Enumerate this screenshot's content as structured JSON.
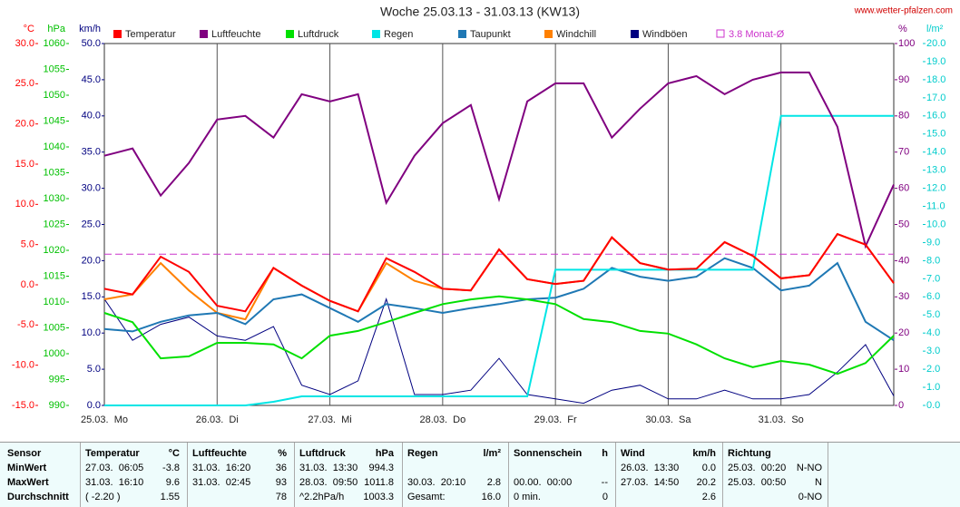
{
  "chart_data": {
    "type": "line",
    "title": "Woche 25.03.13 - 31.03.13 (KW13)",
    "source": "www.wetter-pfalzen.com",
    "categories": [
      "25.03.  Mo",
      null,
      null,
      null,
      "26.03.  Di",
      null,
      null,
      null,
      "27.03.  Mi",
      null,
      null,
      null,
      "28.03.  Do",
      null,
      null,
      null,
      "29.03.  Fr",
      null,
      null,
      null,
      "30.03.  Sa",
      null,
      null,
      null,
      "31.03.  So",
      null,
      null,
      null,
      null
    ],
    "grid": true,
    "axes": {
      "temp": {
        "label": "°C",
        "color": "#ff0000",
        "side": "left",
        "lim": [
          -15,
          30
        ],
        "ticks": [
          {
            "value": -15,
            "label": "-15.0"
          },
          {
            "value": -10,
            "label": "-10.0"
          },
          {
            "value": -5,
            "label": "-5.0"
          },
          {
            "value": 0,
            "label": "0.0"
          },
          {
            "value": 5,
            "label": "5.0"
          },
          {
            "value": 10,
            "label": "10.0"
          },
          {
            "value": 15,
            "label": "15.0"
          },
          {
            "value": 20,
            "label": "20.0"
          },
          {
            "value": 25,
            "label": "25.0"
          },
          {
            "value": 30,
            "label": "30.0"
          }
        ]
      },
      "hpa": {
        "label": "hPa",
        "color": "#00c000",
        "side": "left",
        "lim": [
          990,
          1060
        ],
        "ticks": [
          990,
          995,
          1000,
          1005,
          1010,
          1015,
          1020,
          1025,
          1030,
          1035,
          1040,
          1045,
          1050,
          1055,
          1060
        ]
      },
      "kmh": {
        "label": "km/h",
        "color": "#000080",
        "side": "left",
        "lim": [
          0,
          50
        ],
        "ticks": [
          {
            "value": 0,
            "label": "0.0"
          },
          {
            "value": 5,
            "label": "5.0"
          },
          {
            "value": 10,
            "label": "10.0"
          },
          {
            "value": 15,
            "label": "15.0"
          },
          {
            "value": 20,
            "label": "20.0"
          },
          {
            "value": 25,
            "label": "25.0"
          },
          {
            "value": 30,
            "label": "30.0"
          },
          {
            "value": 35,
            "label": "35.0"
          },
          {
            "value": 40,
            "label": "40.0"
          },
          {
            "value": 45,
            "label": "45.0"
          },
          {
            "value": 50,
            "label": "50.0"
          }
        ]
      },
      "pct": {
        "label": "%",
        "color": "#800080",
        "side": "right",
        "lim": [
          0,
          100
        ],
        "ticks": [
          0,
          10,
          20,
          30,
          40,
          50,
          60,
          70,
          80,
          90,
          100
        ]
      },
      "rain": {
        "label": "l/m²",
        "color": "#00cccc",
        "side": "right",
        "lim": [
          0,
          20
        ],
        "ticks": [
          {
            "value": 0,
            "label": "0.0"
          },
          {
            "value": 1,
            "label": "1.0"
          },
          {
            "value": 2,
            "label": "2.0"
          },
          {
            "value": 3,
            "label": "3.0"
          },
          {
            "value": 4,
            "label": "4.0"
          },
          {
            "value": 5,
            "label": "5.0"
          },
          {
            "value": 6,
            "label": "6.0"
          },
          {
            "value": 7,
            "label": "7.0"
          },
          {
            "value": 8,
            "label": "8.0"
          },
          {
            "value": 9,
            "label": "9.0"
          },
          {
            "value": 10,
            "label": "10.0"
          },
          {
            "value": 11,
            "label": "11.0"
          },
          {
            "value": 12,
            "label": "12.0"
          },
          {
            "value": 13,
            "label": "13.0"
          },
          {
            "value": 14,
            "label": "14.0"
          },
          {
            "value": 15,
            "label": "15.0"
          },
          {
            "value": 16,
            "label": "16.0"
          },
          {
            "value": 17,
            "label": "17.0"
          },
          {
            "value": 18,
            "label": "18.0"
          },
          {
            "value": 19,
            "label": "19.0"
          },
          {
            "value": 20,
            "label": "20.0"
          }
        ]
      }
    },
    "series": [
      {
        "name": "Temperatur",
        "color": "#ff0000",
        "axis": "temp",
        "values": [
          -0.5,
          -1.2,
          3.5,
          1.6,
          -2.6,
          -3.3,
          2.1,
          -0.1,
          -2.0,
          -3.3,
          3.3,
          1.6,
          -0.5,
          -0.7,
          4.4,
          0.7,
          0.1,
          0.5,
          5.9,
          2.7,
          1.9,
          2.0,
          5.3,
          3.6,
          0.8,
          1.2,
          6.3,
          5.0,
          0.2
        ]
      },
      {
        "name": "Luftfeuchte",
        "color": "#800080",
        "axis": "pct",
        "values": [
          69,
          71,
          58,
          67,
          79,
          80,
          74,
          86,
          84,
          86,
          56,
          69,
          78,
          83,
          57,
          84,
          89,
          89,
          74,
          82,
          89,
          91,
          86,
          90,
          92,
          92,
          77,
          44,
          61
        ]
      },
      {
        "name": "Luftdruck",
        "color": "#00e000",
        "axis": "hpa",
        "values": [
          1007.9,
          1006.1,
          999.1,
          999.5,
          1002.1,
          1002.1,
          1001.8,
          999.1,
          1003.5,
          1004.4,
          1006.1,
          1007.9,
          1009.6,
          1010.5,
          1011.1,
          1010.5,
          1009.6,
          1006.7,
          1006.1,
          1004.4,
          1003.9,
          1001.8,
          999.1,
          997.4,
          998.6,
          997.9,
          996.1,
          998.2,
          1003.5
        ]
      },
      {
        "name": "Regen",
        "color": "#00e5e5",
        "axis": "rain",
        "values": [
          0,
          0,
          0,
          0,
          0,
          0,
          0.2,
          0.5,
          0.5,
          0.5,
          0.5,
          0.5,
          0.5,
          0.5,
          0.5,
          0.5,
          7.5,
          7.5,
          7.5,
          7.5,
          7.5,
          7.5,
          7.5,
          7.5,
          16,
          16,
          16,
          16,
          16
        ]
      },
      {
        "name": "Taupunkt",
        "color": "#1f78b4",
        "axis": "temp",
        "values": [
          -5.5,
          -5.8,
          -4.6,
          -3.8,
          -3.5,
          -4.9,
          -1.8,
          -1.2,
          -2.9,
          -4.6,
          -2.4,
          -2.9,
          -3.5,
          -2.9,
          -2.4,
          -1.8,
          -1.6,
          -0.5,
          2.1,
          1.0,
          0.5,
          1.0,
          3.3,
          2.1,
          -0.7,
          -0.1,
          2.7,
          -4.6,
          -6.9
        ]
      },
      {
        "name": "Windchill",
        "color": "#ff8000",
        "axis": "temp",
        "values": [
          -1.8,
          -1.2,
          2.7,
          -0.7,
          -3.5,
          -4.3,
          2.1,
          -0.1,
          -2.0,
          -3.3,
          2.7,
          0.5,
          -0.5,
          -0.7,
          4.4,
          0.7,
          0.1,
          0.5,
          5.9,
          2.7,
          1.9,
          2.0,
          5.3,
          3.6,
          0.8,
          1.2,
          6.3,
          5.0,
          0.2
        ]
      },
      {
        "name": "Windböen",
        "color": "#000080",
        "axis": "kmh",
        "values": [
          14.7,
          9.0,
          11.2,
          12.2,
          9.6,
          9.0,
          10.9,
          2.8,
          1.5,
          3.4,
          14.7,
          1.5,
          1.5,
          2.1,
          6.5,
          1.5,
          0.9,
          0.3,
          2.1,
          2.8,
          0.9,
          0.9,
          2.1,
          0.9,
          0.9,
          1.5,
          4.6,
          8.4,
          1.3
        ]
      }
    ],
    "reference_line": {
      "name": "3.8 Monat-Ø",
      "value": 3.8,
      "axis": "temp",
      "color": "#cc33cc"
    }
  },
  "table": {
    "header": [
      "Sensor",
      "Temperatur",
      "°C",
      "Luftfeuchte",
      "%",
      "Luftdruck",
      "hPa",
      "Regen",
      "l/m²",
      "Sonnenschein",
      "h",
      "Wind",
      "km/h",
      "Richtung",
      null
    ],
    "rows": [
      [
        "MinWert",
        "27.03.  06:05",
        "-3.8",
        "31.03.  16:20",
        "36",
        "31.03.  13:30",
        "994.3",
        null,
        null,
        null,
        null,
        "26.03.  13:30",
        "0.0",
        "25.03.  00:20",
        "N-NO"
      ],
      [
        "MaxWert",
        "31.03.  16:10",
        "9.6",
        "31.03.  02:45",
        "93",
        "28.03.  09:50",
        "1011.8",
        "30.03.  20:10",
        "2.8",
        "00.00.  00:00",
        "--",
        "27.03.  14:50",
        "20.2",
        "25.03.  00:50",
        "N"
      ],
      [
        "Durchschnitt",
        "( -2.20 )",
        "1.55",
        null,
        "78",
        "^2.2hPa/h",
        "1003.3",
        "Gesamt:",
        "16.0",
        "0 min.",
        "0",
        null,
        "2.6",
        null,
        "0-NO"
      ]
    ]
  }
}
